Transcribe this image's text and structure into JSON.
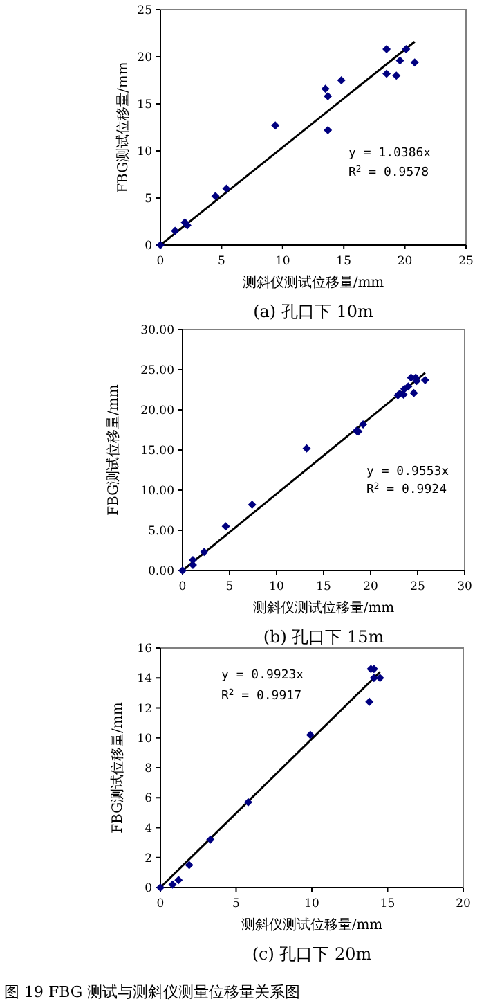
{
  "chart_data": [
    {
      "type": "scatter",
      "title": "(a) 孔口下 10m",
      "xlabel": "测斜仪测试位移量/mm",
      "ylabel": "FBG测试位移量/mm",
      "xlim": [
        0,
        25
      ],
      "ylim": [
        0,
        25
      ],
      "xticks": [
        0,
        5,
        10,
        15,
        20,
        25
      ],
      "yticks": [
        0,
        5,
        10,
        15,
        20,
        25
      ],
      "grid": false,
      "annotations": [
        "y = 1.0386x",
        "R$^{2}$ = 0.9578"
      ],
      "series": [
        {
          "marker": "diamond",
          "color": "#000080",
          "x": [
            0,
            1.2,
            2.0,
            2.2,
            4.5,
            5.4,
            9.4,
            13.5,
            13.7,
            13.7,
            14.8,
            18.5,
            18.5,
            19.3,
            19.6,
            20.1,
            20.8
          ],
          "values": [
            0,
            1.5,
            2.4,
            2.1,
            5.2,
            6.0,
            12.7,
            16.6,
            15.8,
            12.2,
            17.5,
            20.8,
            18.2,
            18.0,
            19.6,
            20.8,
            19.4
          ]
        },
        {
          "type": "line",
          "color": "#000000",
          "x": [
            0,
            20.8
          ],
          "values": [
            0,
            21.6
          ]
        }
      ]
    },
    {
      "type": "scatter",
      "title": "(b) 孔口下 15m",
      "xlabel": "测斜仪测试位移量/mm",
      "ylabel": "FBG测试位移量/mm",
      "xlim": [
        0,
        30
      ],
      "ylim": [
        0,
        30
      ],
      "xticks": [
        0,
        5,
        10,
        15,
        20,
        25,
        30
      ],
      "yticks": [
        {
          "value": 0,
          "label": "0.00"
        },
        {
          "value": 5,
          "label": "5.00"
        },
        {
          "value": 10,
          "label": "10.00"
        },
        {
          "value": 15,
          "label": "15.00"
        },
        {
          "value": 20,
          "label": "20.00"
        },
        {
          "value": 25,
          "label": "25.00"
        },
        {
          "value": 30,
          "label": "30.00"
        }
      ],
      "grid": false,
      "annotations": [
        "y = 0.9553x",
        "R$^{2}$ = 0.9924"
      ],
      "series": [
        {
          "marker": "diamond",
          "color": "#000080",
          "x": [
            0,
            1.1,
            1.1,
            2.3,
            4.6,
            7.4,
            13.2,
            18.5,
            18.7,
            19.2,
            22.9,
            23.1,
            23.5,
            23.6,
            24.0,
            24.3,
            24.6,
            24.8,
            24.9,
            25.8
          ],
          "values": [
            0,
            1.3,
            0.7,
            2.3,
            5.5,
            8.2,
            15.2,
            17.4,
            17.3,
            18.2,
            21.8,
            22.0,
            21.9,
            22.6,
            22.9,
            24.0,
            22.1,
            24.0,
            23.6,
            23.7
          ]
        },
        {
          "type": "line",
          "color": "#000000",
          "x": [
            0,
            25.8
          ],
          "values": [
            0,
            24.6
          ]
        }
      ]
    },
    {
      "type": "scatter",
      "title": "(c) 孔口下 20m",
      "xlabel": "测斜仪测试位移量/mm",
      "ylabel": "FBG测试位移量/mm",
      "xlim": [
        0,
        20
      ],
      "ylim": [
        0,
        16
      ],
      "xticks": [
        0,
        5,
        10,
        15,
        20
      ],
      "yticks": [
        0,
        2,
        4,
        6,
        8,
        10,
        12,
        14,
        16
      ],
      "grid": false,
      "annotations": [
        "y = 0.9923x",
        "R$^{2}$ = 0.9917",
        "图 19 FBG 测试与测斜仪测量位移量关系图"
      ],
      "series": [
        {
          "marker": "diamond",
          "color": "#000080",
          "x": [
            0,
            0.8,
            1.2,
            1.9,
            3.3,
            5.8,
            9.9,
            13.8,
            13.9,
            14.1,
            14.1,
            14.5
          ],
          "values": [
            0,
            0.2,
            0.5,
            1.5,
            3.2,
            5.7,
            10.2,
            12.4,
            14.6,
            14.6,
            14.0,
            14.0
          ]
        },
        {
          "type": "line",
          "color": "#000000",
          "x": [
            0,
            14.5
          ],
          "values": [
            0,
            14.4
          ]
        }
      ]
    }
  ]
}
